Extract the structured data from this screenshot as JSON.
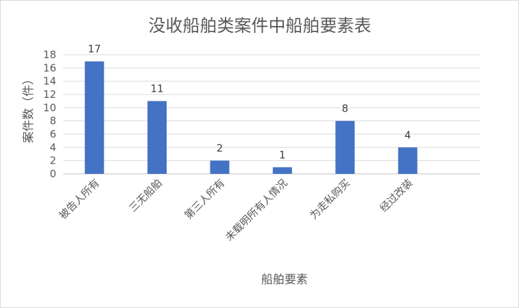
{
  "chart_data": {
    "type": "bar",
    "title": "没收船舶类案件中船舶要素表",
    "xlabel": "船舶要素",
    "ylabel": "案件数（件）",
    "categories": [
      "被告人所有",
      "三无船舶",
      "第三人所有",
      "未载明所有人情况",
      "为走私购买",
      "经过改装"
    ],
    "values": [
      17,
      11,
      2,
      1,
      8,
      4
    ],
    "ylim": [
      0,
      18
    ],
    "yticks": [
      0,
      2,
      4,
      6,
      8,
      10,
      12,
      14,
      16,
      18
    ],
    "grid": true,
    "legend": "none",
    "bar_color": "#4472c4"
  }
}
